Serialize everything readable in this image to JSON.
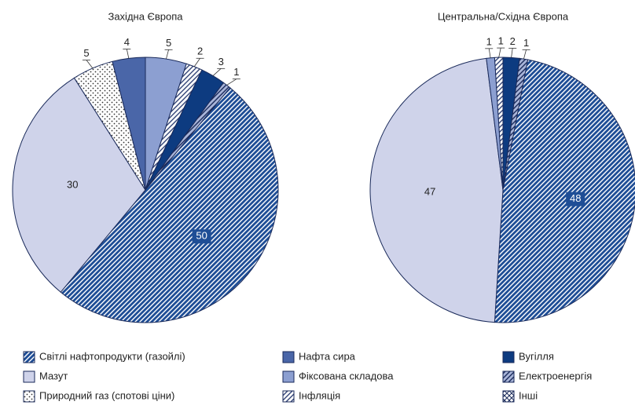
{
  "chart_data": [
    {
      "type": "pie",
      "title": "Західна Європа",
      "categories": [
        "Фіксована складова",
        "Інфляція",
        "Вугілля",
        "Електроенергія",
        "Світлі нафтопродукти  (газойлі)",
        "Мазут",
        "Природний газ (спотові ціни)",
        "Нафта сира"
      ],
      "values": [
        5,
        2,
        3,
        1,
        50,
        30,
        5,
        4
      ]
    },
    {
      "type": "pie",
      "title": "Центральна/Східна Європа",
      "categories": [
        "Вугілля",
        "Електроенергія",
        "Світлі нафтопродукти  (газойлі)",
        "Мазут",
        "Фіксована складова",
        "Інфляція"
      ],
      "values": [
        2,
        1,
        48,
        47,
        1,
        1
      ]
    }
  ],
  "legend": {
    "items": [
      {
        "name": "Світлі нафтопродукти  (газойлі)",
        "color": "#1f4e96",
        "pattern": "stripes",
        "pattern_color": "#ffffff"
      },
      {
        "name": "Мазут",
        "color": "#cfd3ea",
        "pattern": "solid"
      },
      {
        "name": "Природний газ (спотові ціни)",
        "color": "#ffffff",
        "pattern": "dots",
        "pattern_color": "#333333"
      },
      {
        "name": "Нафта сира",
        "color": "#4a66a8",
        "pattern": "solid"
      },
      {
        "name": "Фіксована складова",
        "color": "#8c9fd1",
        "pattern": "solid"
      },
      {
        "name": "Інфляція",
        "color": "#ffffff",
        "pattern": "stripes",
        "pattern_color": "#334477"
      },
      {
        "name": "Вугілля",
        "color": "#0d3b80",
        "pattern": "solid"
      },
      {
        "name": "Електроенергія",
        "color": "#a8b4d8",
        "pattern": "stripes",
        "pattern_color": "#1a2a5a"
      },
      {
        "name": "Інші",
        "color": "#ffffff",
        "pattern": "cross",
        "pattern_color": "#1a2a5a"
      }
    ]
  }
}
